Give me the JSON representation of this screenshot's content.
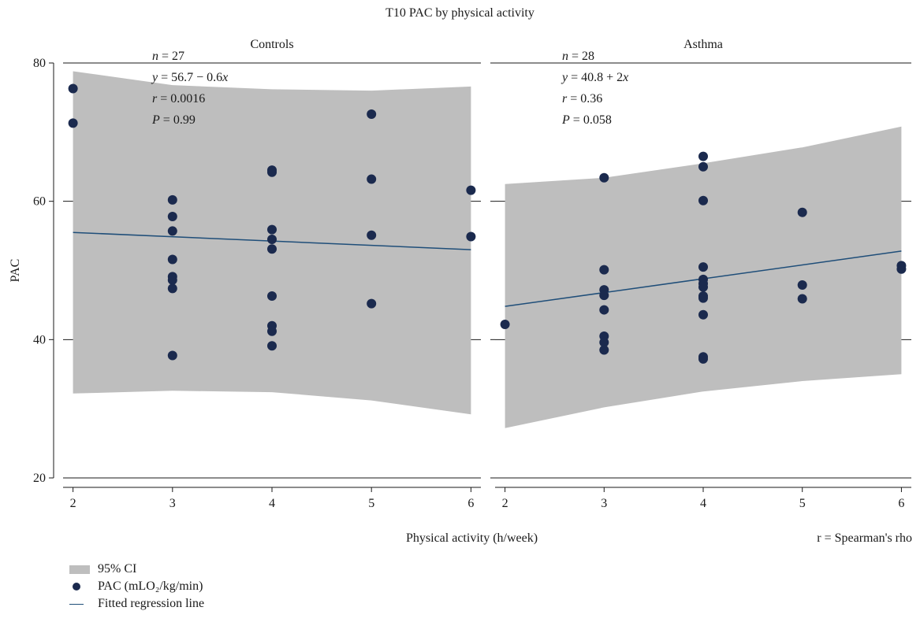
{
  "chart_data": {
    "type": "scatter",
    "title": "T10 PAC by physical activity",
    "xlabel": "Physical activity (h/week)",
    "ylabel": "PAC",
    "note": "r = Spearman's rho",
    "ylim": [
      20,
      80
    ],
    "yticks": [
      20,
      40,
      60,
      80
    ],
    "xticks": [
      2,
      3,
      4,
      5,
      6
    ],
    "legend": {
      "placement": "bottom-left",
      "items": [
        {
          "kind": "ci",
          "label": "95% CI"
        },
        {
          "kind": "point",
          "label": "PAC (mLO₂/kg/min)"
        },
        {
          "kind": "line",
          "label": "Fitted regression line"
        }
      ]
    },
    "colors": {
      "ci": "#bebebe",
      "point": "#1b2a4e",
      "line": "#1f4e79"
    },
    "panels": [
      {
        "name": "Controls",
        "xlim": [
          1.9,
          6.1
        ],
        "stats": {
          "n": "n = 27",
          "eq": "y = 56.7 − 0.6x",
          "r": "r = 0.0016",
          "p": "P = 0.99"
        },
        "fit": {
          "x": [
            2,
            6
          ],
          "y": [
            55.5,
            53.0
          ]
        },
        "ci_upper": {
          "x": [
            2,
            3,
            4,
            5,
            6
          ],
          "y": [
            78.8,
            76.8,
            76.2,
            76.0,
            76.6
          ]
        },
        "ci_lower": {
          "x": [
            2,
            3,
            4,
            5,
            6
          ],
          "y": [
            32.2,
            32.6,
            32.4,
            31.2,
            29.2
          ]
        },
        "points": [
          [
            2,
            76.3
          ],
          [
            2,
            71.3
          ],
          [
            3,
            60.2
          ],
          [
            3,
            57.8
          ],
          [
            3,
            55.7
          ],
          [
            3,
            51.6
          ],
          [
            3,
            49.1
          ],
          [
            3,
            48.6
          ],
          [
            3,
            47.4
          ],
          [
            3,
            37.7
          ],
          [
            4,
            64.5
          ],
          [
            4,
            64.2
          ],
          [
            4,
            55.9
          ],
          [
            4,
            54.5
          ],
          [
            4,
            53.1
          ],
          [
            4,
            46.3
          ],
          [
            4,
            42.0
          ],
          [
            4,
            41.2
          ],
          [
            4,
            39.1
          ],
          [
            5,
            72.6
          ],
          [
            5,
            63.2
          ],
          [
            5,
            55.1
          ],
          [
            5,
            45.2
          ],
          [
            6,
            61.6
          ],
          [
            6,
            54.9
          ]
        ]
      },
      {
        "name": "Asthma",
        "xlim": [
          1.9,
          6.1
        ],
        "stats": {
          "n": "n = 28",
          "eq": "y = 40.8 + 2x",
          "r": "r = 0.36",
          "p": "P = 0.058"
        },
        "fit": {
          "x": [
            2,
            6
          ],
          "y": [
            44.8,
            52.8
          ]
        },
        "ci_upper": {
          "x": [
            2,
            3,
            4,
            5,
            6
          ],
          "y": [
            62.5,
            63.4,
            65.5,
            67.8,
            70.8
          ]
        },
        "ci_lower": {
          "x": [
            2,
            3,
            4,
            5,
            6
          ],
          "y": [
            27.2,
            30.2,
            32.5,
            34.0,
            35.0
          ]
        },
        "points": [
          [
            2,
            42.2
          ],
          [
            3,
            63.4
          ],
          [
            3,
            50.1
          ],
          [
            3,
            47.2
          ],
          [
            3,
            46.4
          ],
          [
            3,
            44.3
          ],
          [
            3,
            40.5
          ],
          [
            3,
            39.6
          ],
          [
            3,
            38.5
          ],
          [
            4,
            66.5
          ],
          [
            4,
            65.0
          ],
          [
            4,
            60.1
          ],
          [
            4,
            50.5
          ],
          [
            4,
            48.7
          ],
          [
            4,
            48.1
          ],
          [
            4,
            47.6
          ],
          [
            4,
            46.3
          ],
          [
            4,
            46.0
          ],
          [
            4,
            43.6
          ],
          [
            4,
            37.5
          ],
          [
            4,
            37.2
          ],
          [
            5,
            58.4
          ],
          [
            5,
            47.9
          ],
          [
            5,
            45.9
          ],
          [
            6,
            50.7
          ],
          [
            6,
            50.2
          ]
        ]
      }
    ]
  }
}
